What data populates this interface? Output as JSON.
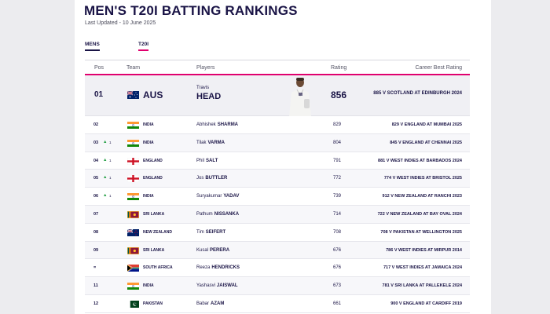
{
  "title": "MEN'S T20I BATTING RANKINGS",
  "last_updated": "Last Updated - 10 June 2025",
  "tabs": [
    {
      "label": "MENS"
    },
    {
      "label": "T20I"
    }
  ],
  "columns": {
    "pos": "Pos",
    "team": "Team",
    "players": "Players",
    "rating": "Rating",
    "best": "Career Best Rating"
  },
  "top": {
    "pos": "01",
    "flag": "aus-flag",
    "team": "AUS",
    "first": "Travis",
    "last": "HEAD",
    "rating": "856",
    "best": "885 V SCOTLAND AT EDINBURGH 2024"
  },
  "rows": [
    {
      "pos": "02",
      "move": "",
      "move_n": "",
      "flag": "india-flag",
      "team": "INDIA",
      "first": "Abhishek",
      "last": "SHARMA",
      "rating": "829",
      "best": "829 V ENGLAND AT MUMBAI 2025"
    },
    {
      "pos": "03",
      "move": "▲",
      "move_n": "1",
      "flag": "india-flag",
      "team": "INDIA",
      "first": "Tilak",
      "last": "VARMA",
      "rating": "804",
      "best": "845 V ENGLAND AT CHENNAI 2025"
    },
    {
      "pos": "04",
      "move": "▲",
      "move_n": "1",
      "flag": "england-flag",
      "team": "ENGLAND",
      "first": "Phil",
      "last": "SALT",
      "rating": "791",
      "best": "881 V WEST INDIES AT BARBADOS 2024"
    },
    {
      "pos": "05",
      "move": "▲",
      "move_n": "1",
      "flag": "england-flag",
      "team": "ENGLAND",
      "first": "Jos",
      "last": "BUTTLER",
      "rating": "772",
      "best": "774 V WEST INDIES AT BRISTOL 2025"
    },
    {
      "pos": "06",
      "move": "▲",
      "move_n": "1",
      "flag": "india-flag",
      "team": "INDIA",
      "first": "Suryakumar",
      "last": "YADAV",
      "rating": "739",
      "best": "912 V NEW ZEALAND AT RANCHI 2023"
    },
    {
      "pos": "07",
      "move": "",
      "move_n": "",
      "flag": "srilanka-flag",
      "team": "SRI LANKA",
      "first": "Pathum",
      "last": "NISSANKA",
      "rating": "714",
      "best": "722 V NEW ZEALAND AT BAY OVAL 2024"
    },
    {
      "pos": "08",
      "move": "",
      "move_n": "",
      "flag": "nz-flag",
      "team": "NEW ZEALAND",
      "first": "Tim",
      "last": "SEIFERT",
      "rating": "708",
      "best": "708 V PAKISTAN AT WELLINGTON 2025"
    },
    {
      "pos": "09",
      "move": "",
      "move_n": "",
      "flag": "srilanka-flag",
      "team": "SRI LANKA",
      "first": "Kusal",
      "last": "PERERA",
      "rating": "676",
      "best": "786 V WEST INDIES AT MIRPUR 2014"
    },
    {
      "pos": "=",
      "move": "",
      "move_n": "",
      "flag": "sa-flag",
      "team": "SOUTH AFRICA",
      "first": "Reeza",
      "last": "HENDRICKS",
      "rating": "676",
      "best": "717 V WEST INDIES AT JAMAICA 2024"
    },
    {
      "pos": "11",
      "move": "",
      "move_n": "",
      "flag": "india-flag",
      "team": "INDIA",
      "first": "Yashasvi",
      "last": "JAISWAL",
      "rating": "673",
      "best": "781 V SRI LANKA AT PALLEKELE 2024"
    },
    {
      "pos": "12",
      "move": "",
      "move_n": "",
      "flag": "pakistan-flag",
      "team": "PAKISTAN",
      "first": "Babar",
      "last": "AZAM",
      "rating": "661",
      "best": "900 V ENGLAND AT CARDIFF 2019"
    }
  ],
  "colors": {
    "navy": "#1a1446",
    "accent": "#e0006e",
    "up": "#2aa24a"
  }
}
